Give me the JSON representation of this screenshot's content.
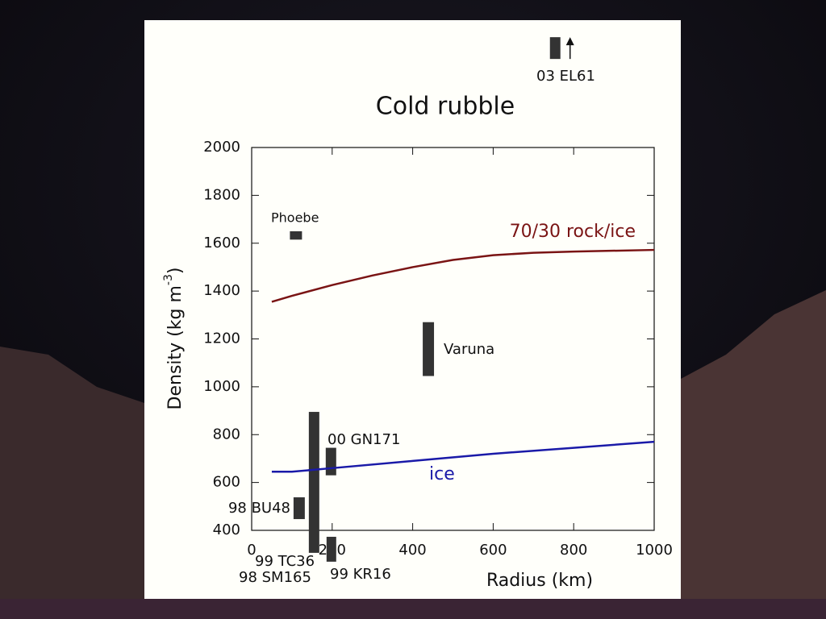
{
  "chart_data": {
    "type": "range-box",
    "title": "Cold rubble",
    "x_label": "Radius (km)",
    "y_label": "Density (kg m",
    "y_label_exponent": "-3",
    "y_label_end": ")",
    "xlim": [
      0,
      1000
    ],
    "xticks": [
      0,
      200,
      400,
      600,
      800,
      1000
    ],
    "ylim": [
      400,
      2000
    ],
    "yticks": [
      400,
      600,
      800,
      1000,
      1200,
      1400,
      1600,
      1800,
      2000
    ],
    "box_color": "#333333",
    "objects": [
      {
        "name": "Phoebe",
        "radius": [
          95,
          125
        ],
        "density": [
          1615,
          1650
        ]
      },
      {
        "name": "Varuna",
        "radius": [
          425,
          453
        ],
        "density": [
          1045,
          1270
        ]
      },
      {
        "name": "00 GN171",
        "radius": [
          184,
          210
        ],
        "density": [
          630,
          745
        ]
      },
      {
        "name": "98 BU48",
        "radius": [
          104,
          132
        ],
        "density": [
          447,
          538
        ]
      },
      {
        "name": "99 TC36",
        "radius": [
          142,
          168
        ],
        "density": [
          306,
          895
        ]
      },
      {
        "name": "99 KR16",
        "radius": [
          186,
          210
        ],
        "density": [
          269,
          373
        ]
      },
      {
        "name": "03  EL61",
        "radius": [
          741,
          767
        ],
        "density": [
          2370,
          2461
        ],
        "lower_limit": true
      }
    ],
    "annotations": [
      "98 SM165"
    ],
    "series": [
      {
        "name": "70/30 rock/ice",
        "color": "#7a1414",
        "x": [
          50,
          100,
          200,
          300,
          400,
          500,
          600,
          700,
          800,
          1000
        ],
        "values": [
          1355,
          1380,
          1425,
          1465,
          1500,
          1530,
          1550,
          1560,
          1565,
          1572
        ]
      },
      {
        "name": "ice",
        "color": "#1a1aa8",
        "x": [
          50,
          100,
          200,
          400,
          600,
          800,
          1000
        ],
        "values": [
          645,
          645,
          660,
          690,
          720,
          745,
          770
        ]
      }
    ]
  }
}
